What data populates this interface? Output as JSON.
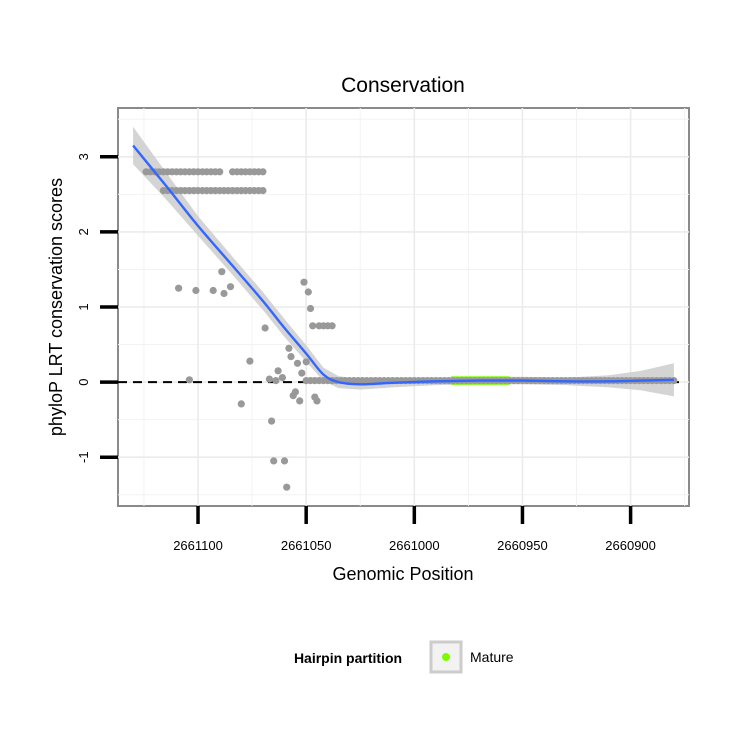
{
  "chart_data": {
    "type": "scatter",
    "title": "Conservation",
    "xlabel": "Genomic Position",
    "ylabel": "phyloP LRT conservation scores",
    "x_reversed": true,
    "xlim": [
      2661137,
      2660873
    ],
    "ylim": [
      -1.65,
      3.65
    ],
    "x_ticks": [
      2661100,
      2661050,
      2661000,
      2660950,
      2660900
    ],
    "x_tick_labels": [
      "2661100",
      "2661050",
      "2661000",
      "2660950",
      "2660900"
    ],
    "y_ticks": [
      -1,
      0,
      1,
      2,
      3
    ],
    "y_tick_labels": [
      "-1",
      "0",
      "1",
      "2",
      "3"
    ],
    "grid": true,
    "reference_line": {
      "y": 0,
      "style": "dashed",
      "color": "#000000"
    },
    "colors": {
      "points": "#999999",
      "smooth": "#3366ff",
      "band": "#cccccc",
      "mature": "#7cfc00"
    },
    "points_top": {
      "y_upper": 2.8,
      "y_lower": 2.55,
      "x_upper": [
        2661124,
        2661122,
        2661120,
        2661118,
        2661116,
        2661114,
        2661112,
        2661110,
        2661108,
        2661106,
        2661104,
        2661102,
        2661100,
        2661098,
        2661096,
        2661094,
        2661092,
        2661090,
        2661084,
        2661082,
        2661080,
        2661078,
        2661076,
        2661074,
        2661072,
        2661070
      ],
      "x_lower": [
        2661116,
        2661114,
        2661112,
        2661110,
        2661108,
        2661106,
        2661104,
        2661102,
        2661100,
        2661098,
        2661096,
        2661094,
        2661092,
        2661090,
        2661088,
        2661086,
        2661084,
        2661082,
        2661080,
        2661078,
        2661076,
        2661074,
        2661072,
        2661070
      ]
    },
    "points_scatter": [
      [
        2661109,
        1.25
      ],
      [
        2661101,
        1.22
      ],
      [
        2661093,
        1.22
      ],
      [
        2661089,
        1.47
      ],
      [
        2661088,
        1.18
      ],
      [
        2661085,
        1.27
      ],
      [
        2661104,
        0.03
      ],
      [
        2661080,
        -0.29
      ],
      [
        2661076,
        0.28
      ],
      [
        2661069,
        0.72
      ],
      [
        2661067,
        0.04
      ],
      [
        2661066,
        -0.52
      ],
      [
        2661065,
        -1.05
      ],
      [
        2661064,
        0.02
      ],
      [
        2661063,
        0.15
      ],
      [
        2661061,
        0.06
      ],
      [
        2661060,
        -1.05
      ],
      [
        2661059,
        -1.4
      ],
      [
        2661058,
        0.45
      ],
      [
        2661057,
        0.34
      ],
      [
        2661056,
        -0.18
      ],
      [
        2661055,
        -0.13
      ],
      [
        2661054,
        0.25
      ],
      [
        2661053,
        -0.25
      ],
      [
        2661052,
        0.12
      ],
      [
        2661051,
        1.33
      ],
      [
        2661050,
        0.27
      ],
      [
        2661049,
        1.2
      ],
      [
        2661048,
        0.98
      ],
      [
        2661047,
        0.75
      ],
      [
        2661046,
        -0.2
      ],
      [
        2661045,
        -0.25
      ],
      [
        2661044,
        0.75
      ],
      [
        2661042,
        0.75
      ],
      [
        2661040,
        0.75
      ],
      [
        2661038,
        0.75
      ]
    ],
    "points_zero": {
      "y": 0.02,
      "x_start": 2661050,
      "x_end": 2660880,
      "step": 2
    },
    "smooth_line": [
      [
        2661130,
        3.15
      ],
      [
        2661115,
        2.62
      ],
      [
        2661100,
        2.08
      ],
      [
        2661085,
        1.58
      ],
      [
        2661070,
        1.08
      ],
      [
        2661060,
        0.72
      ],
      [
        2661050,
        0.38
      ],
      [
        2661042,
        0.1
      ],
      [
        2661035,
        0.0
      ],
      [
        2661025,
        -0.03
      ],
      [
        2661010,
        -0.01
      ],
      [
        2660990,
        0.01
      ],
      [
        2660970,
        0.02
      ],
      [
        2660950,
        0.02
      ],
      [
        2660930,
        0.01
      ],
      [
        2660910,
        0.01
      ],
      [
        2660895,
        0.02
      ],
      [
        2660880,
        0.03
      ]
    ],
    "band_half_width": [
      [
        2661130,
        0.25
      ],
      [
        2661115,
        0.18
      ],
      [
        2661100,
        0.13
      ],
      [
        2661085,
        0.12
      ],
      [
        2661070,
        0.12
      ],
      [
        2661060,
        0.12
      ],
      [
        2661050,
        0.11
      ],
      [
        2661042,
        0.09
      ],
      [
        2661035,
        0.08
      ],
      [
        2661025,
        0.07
      ],
      [
        2661010,
        0.06
      ],
      [
        2660990,
        0.05
      ],
      [
        2660970,
        0.05
      ],
      [
        2660950,
        0.05
      ],
      [
        2660930,
        0.05
      ],
      [
        2660910,
        0.08
      ],
      [
        2660895,
        0.13
      ],
      [
        2660880,
        0.22
      ]
    ],
    "mature_segment": {
      "x_start": 2660983,
      "x_end": 2660956,
      "y": 0.02
    },
    "legend": {
      "title": "Hairpin partition",
      "entries": [
        "Mature"
      ],
      "placement": "bottom"
    }
  }
}
